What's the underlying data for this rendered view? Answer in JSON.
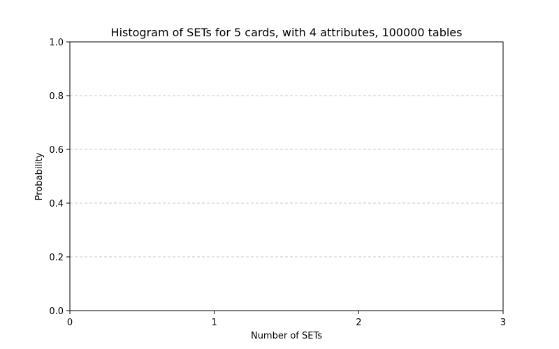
{
  "chart_data": {
    "type": "bar",
    "title": "Histogram of SETs for 5 cards, with 4 attributes, 100000 tables",
    "xlabel": "Number of SETs",
    "ylabel": "Probability",
    "xlim": [
      0,
      3
    ],
    "ylim": [
      0,
      1.0
    ],
    "x_ticks": [
      "0",
      "1",
      "2",
      "3"
    ],
    "y_ticks": [
      "0.0",
      "0.2",
      "0.4",
      "0.6",
      "0.8",
      "1.0"
    ],
    "grid": "y dashed",
    "series": []
  }
}
